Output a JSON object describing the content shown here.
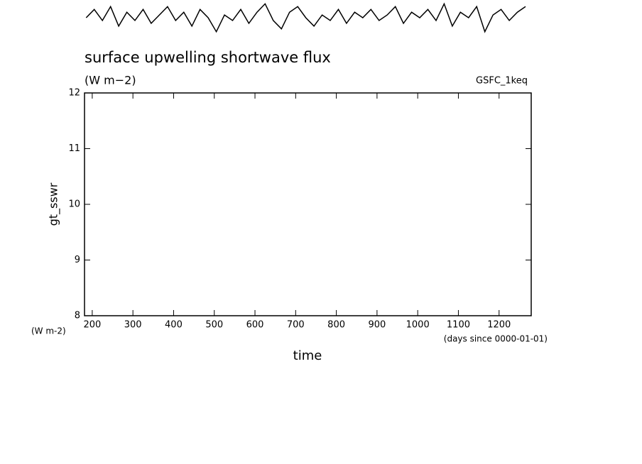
{
  "chart_data": {
    "type": "line",
    "title": "surface upwelling shortwave flux",
    "subtitle": "(W m−2)",
    "annotation": "GSFC_1keq",
    "y_label": "gt_sswr",
    "y_unit": "(W m-2)",
    "x_unit": "(days since 0000-01-01)",
    "x_label": "time",
    "color": "#000000",
    "x": [
      185,
      205,
      225,
      245,
      265,
      285,
      305,
      325,
      345,
      365,
      385,
      405,
      425,
      445,
      465,
      485,
      505,
      525,
      545,
      565,
      585,
      605,
      625,
      645,
      665,
      685,
      705,
      725,
      745,
      765,
      785,
      805,
      825,
      845,
      865,
      885,
      905,
      925,
      945,
      965,
      985,
      1005,
      1025,
      1045,
      1065,
      1085,
      1105,
      1125,
      1145,
      1165,
      1185,
      1205,
      1225,
      1245,
      1265
    ],
    "values": [
      13.35,
      13.5,
      13.3,
      13.55,
      13.2,
      13.45,
      13.3,
      13.5,
      13.25,
      13.4,
      13.55,
      13.3,
      13.45,
      13.2,
      13.5,
      13.35,
      13.1,
      13.4,
      13.3,
      13.5,
      13.25,
      13.45,
      13.6,
      13.3,
      13.15,
      13.45,
      13.55,
      13.35,
      13.2,
      13.4,
      13.3,
      13.5,
      13.25,
      13.45,
      13.35,
      13.5,
      13.3,
      13.4,
      13.55,
      13.25,
      13.45,
      13.35,
      13.5,
      13.3,
      13.6,
      13.2,
      13.45,
      13.35,
      13.55,
      13.1,
      13.4,
      13.5,
      13.3,
      13.45,
      13.55
    ],
    "xlim": [
      181,
      1279
    ],
    "ylim": [
      8,
      12
    ],
    "xticks": [
      200,
      300,
      400,
      500,
      600,
      700,
      800,
      900,
      1000,
      1100,
      1200
    ],
    "yticks": [
      8,
      9,
      10,
      11,
      12
    ]
  }
}
